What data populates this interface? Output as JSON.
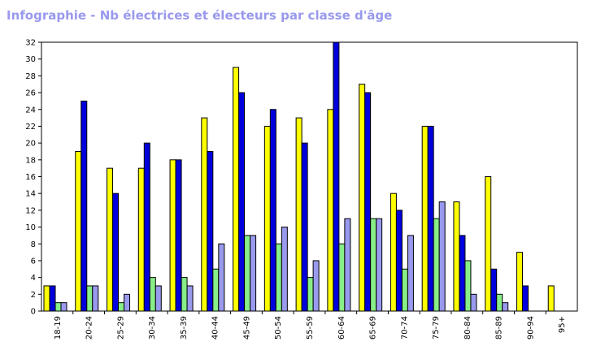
{
  "chart_data": {
    "type": "bar",
    "title": "Infographie - Nb électrices et électeurs par classe d'âge",
    "xlabel": "",
    "ylabel": "",
    "ylim": [
      0,
      32
    ],
    "yticks": [
      0,
      2,
      4,
      6,
      8,
      10,
      12,
      14,
      16,
      18,
      20,
      22,
      24,
      26,
      28,
      30,
      32
    ],
    "grid": false,
    "legend": "none",
    "categories": [
      "18-19",
      "20-24",
      "25-29",
      "30-34",
      "35-39",
      "40-44",
      "45-49",
      "50-54",
      "55-59",
      "60-64",
      "65-69",
      "70-74",
      "75-79",
      "80-84",
      "85-89",
      "90-94",
      "95+"
    ],
    "series": [
      {
        "color": "#ffff00",
        "values": [
          3,
          19,
          17,
          17,
          18,
          23,
          29,
          22,
          23,
          24,
          27,
          14,
          22,
          13,
          16,
          7,
          3
        ]
      },
      {
        "color": "#0000dd",
        "values": [
          3,
          25,
          14,
          20,
          18,
          19,
          26,
          24,
          20,
          32,
          26,
          12,
          22,
          9,
          5,
          3,
          0
        ]
      },
      {
        "color": "#88ee88",
        "values": [
          1,
          3,
          1,
          4,
          4,
          5,
          9,
          8,
          4,
          8,
          11,
          5,
          11,
          6,
          2,
          0,
          0
        ]
      },
      {
        "color": "#9999ee",
        "values": [
          1,
          3,
          2,
          3,
          3,
          8,
          9,
          10,
          6,
          11,
          11,
          9,
          13,
          2,
          1,
          0,
          0
        ]
      }
    ]
  }
}
